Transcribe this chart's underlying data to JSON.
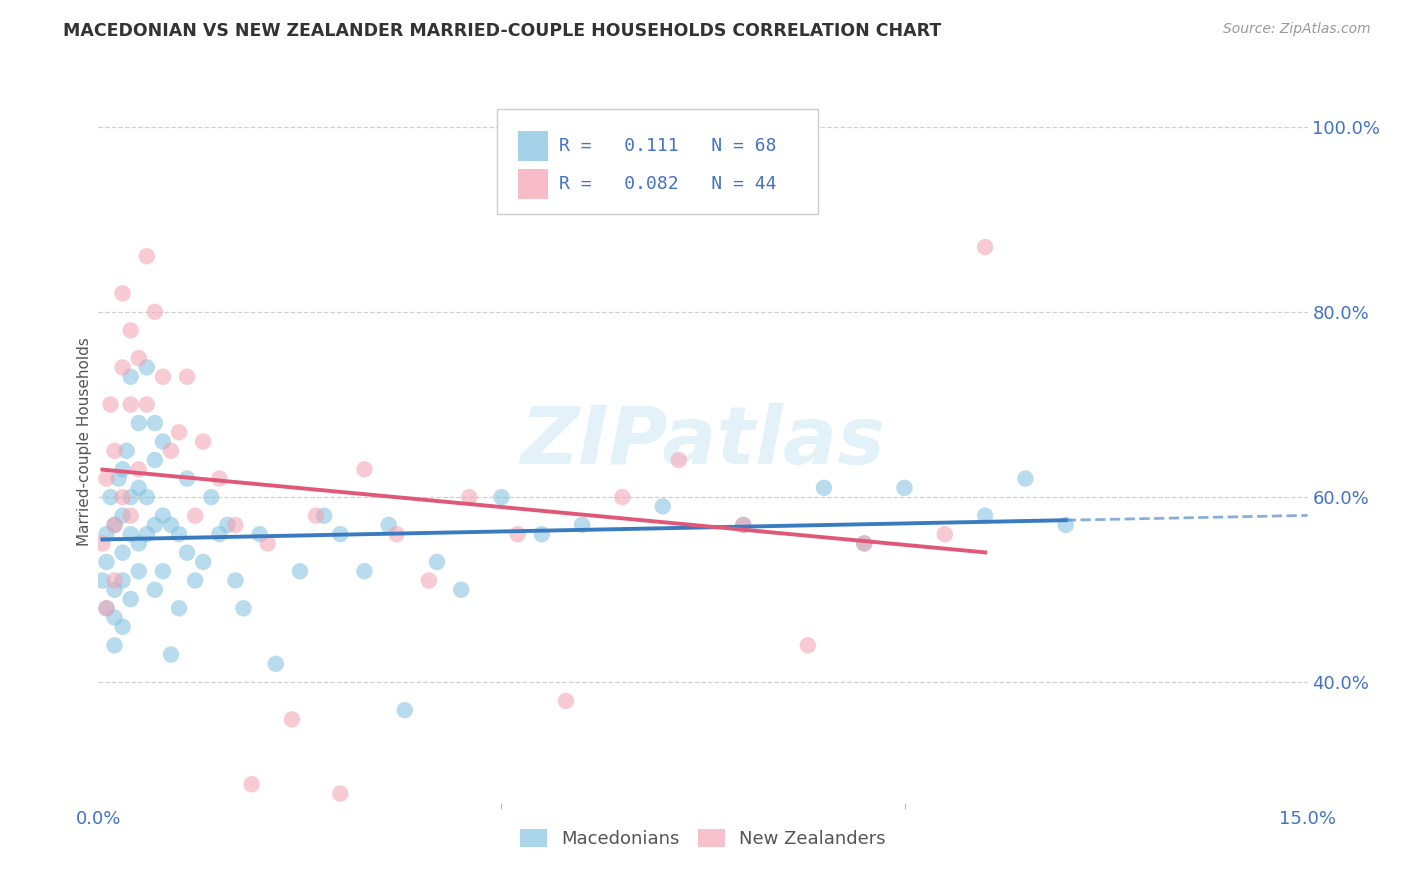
{
  "title": "MACEDONIAN VS NEW ZEALANDER MARRIED-COUPLE HOUSEHOLDS CORRELATION CHART",
  "source": "Source: ZipAtlas.com",
  "ylabel": "Married-couple Households",
  "xlim": [
    0.0,
    0.15
  ],
  "ylim": [
    0.27,
    1.05
  ],
  "y_ticks": [
    0.4,
    0.6,
    0.8,
    1.0
  ],
  "y_tick_labels": [
    "40.0%",
    "60.0%",
    "80.0%",
    "100.0%"
  ],
  "watermark": "ZIPatlas",
  "legend_macedonian": "Macedonians",
  "legend_nz": "New Zealanders",
  "R_macedonian": 0.111,
  "N_macedonian": 68,
  "R_nz": 0.082,
  "N_nz": 44,
  "macedonian_color": "#7fbfdf",
  "nz_color": "#f4a0b0",
  "macedonian_line_color": "#3a7bbf",
  "nz_line_color": "#e05878",
  "background_color": "#ffffff",
  "macedonian_x": [
    0.0005,
    0.001,
    0.001,
    0.001,
    0.0015,
    0.002,
    0.002,
    0.002,
    0.002,
    0.0025,
    0.003,
    0.003,
    0.003,
    0.003,
    0.003,
    0.0035,
    0.004,
    0.004,
    0.004,
    0.004,
    0.005,
    0.005,
    0.005,
    0.005,
    0.006,
    0.006,
    0.006,
    0.007,
    0.007,
    0.007,
    0.007,
    0.008,
    0.008,
    0.008,
    0.009,
    0.009,
    0.01,
    0.01,
    0.011,
    0.011,
    0.012,
    0.013,
    0.014,
    0.015,
    0.016,
    0.017,
    0.018,
    0.02,
    0.022,
    0.025,
    0.028,
    0.03,
    0.033,
    0.036,
    0.038,
    0.042,
    0.045,
    0.05,
    0.055,
    0.06,
    0.07,
    0.08,
    0.09,
    0.095,
    0.1,
    0.11,
    0.115,
    0.12
  ],
  "macedonian_y": [
    0.51,
    0.56,
    0.48,
    0.53,
    0.6,
    0.5,
    0.57,
    0.47,
    0.44,
    0.62,
    0.54,
    0.63,
    0.46,
    0.58,
    0.51,
    0.65,
    0.56,
    0.49,
    0.73,
    0.6,
    0.52,
    0.61,
    0.68,
    0.55,
    0.74,
    0.6,
    0.56,
    0.64,
    0.57,
    0.5,
    0.68,
    0.66,
    0.52,
    0.58,
    0.43,
    0.57,
    0.56,
    0.48,
    0.62,
    0.54,
    0.51,
    0.53,
    0.6,
    0.56,
    0.57,
    0.51,
    0.48,
    0.56,
    0.42,
    0.52,
    0.58,
    0.56,
    0.52,
    0.57,
    0.37,
    0.53,
    0.5,
    0.6,
    0.56,
    0.57,
    0.59,
    0.57,
    0.61,
    0.55,
    0.61,
    0.58,
    0.62,
    0.57
  ],
  "nz_x": [
    0.0005,
    0.001,
    0.001,
    0.0015,
    0.002,
    0.002,
    0.002,
    0.003,
    0.003,
    0.003,
    0.004,
    0.004,
    0.004,
    0.005,
    0.005,
    0.006,
    0.006,
    0.007,
    0.008,
    0.009,
    0.01,
    0.011,
    0.012,
    0.013,
    0.015,
    0.017,
    0.019,
    0.021,
    0.024,
    0.027,
    0.03,
    0.033,
    0.037,
    0.041,
    0.046,
    0.052,
    0.058,
    0.065,
    0.072,
    0.08,
    0.088,
    0.095,
    0.105,
    0.11
  ],
  "nz_y": [
    0.55,
    0.62,
    0.48,
    0.7,
    0.57,
    0.65,
    0.51,
    0.82,
    0.74,
    0.6,
    0.78,
    0.7,
    0.58,
    0.75,
    0.63,
    0.86,
    0.7,
    0.8,
    0.73,
    0.65,
    0.67,
    0.73,
    0.58,
    0.66,
    0.62,
    0.57,
    0.29,
    0.55,
    0.36,
    0.58,
    0.28,
    0.63,
    0.56,
    0.51,
    0.6,
    0.56,
    0.38,
    0.6,
    0.64,
    0.57,
    0.44,
    0.55,
    0.56,
    0.87
  ]
}
